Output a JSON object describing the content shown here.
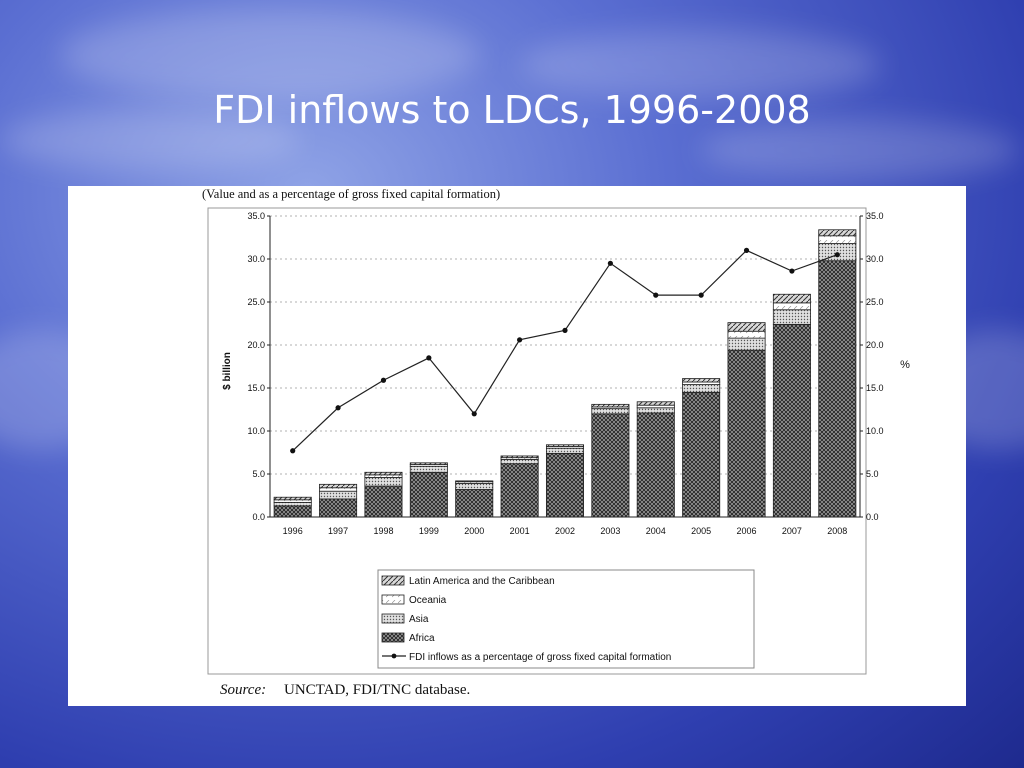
{
  "slide": {
    "title": "FDI inflows to LDCs, 1996-2008"
  },
  "figure": {
    "caption": "(Value and as a percentage of gross fixed capital formation)",
    "source_label": "Source:",
    "source_text": "UNCTAD, FDI/TNC database."
  },
  "chart_data": {
    "type": "bar",
    "stacked": true,
    "categories": [
      "1996",
      "1997",
      "1998",
      "1999",
      "2000",
      "2001",
      "2002",
      "2003",
      "2004",
      "2005",
      "2006",
      "2007",
      "2008"
    ],
    "series": [
      {
        "name": "Africa",
        "values": [
          1.3,
          2.1,
          3.6,
          5.2,
          3.2,
          6.2,
          7.4,
          12.0,
          12.1,
          14.5,
          19.4,
          22.4,
          29.8
        ],
        "color": "#6a6a6a"
      },
      {
        "name": "Asia",
        "values": [
          0.4,
          0.9,
          1.0,
          0.7,
          0.7,
          0.5,
          0.6,
          0.6,
          0.6,
          0.9,
          1.4,
          1.7,
          2.0
        ],
        "color": "#bdbdbd"
      },
      {
        "name": "Oceania",
        "values": [
          0.3,
          0.4,
          0.3,
          0.2,
          0.2,
          0.2,
          0.2,
          0.2,
          0.3,
          0.3,
          0.8,
          0.8,
          0.9
        ],
        "color": "#ffffff"
      },
      {
        "name": "Latin America and the Caribbean",
        "values": [
          0.3,
          0.4,
          0.3,
          0.2,
          0.1,
          0.2,
          0.2,
          0.3,
          0.4,
          0.4,
          1.0,
          1.0,
          0.7
        ],
        "color": "#9a9a9a"
      },
      {
        "name": "FDI inflows as a percentage of gross fixed capital formation",
        "type": "line",
        "axis": "right",
        "values": [
          7.7,
          12.7,
          15.9,
          18.5,
          12.0,
          20.6,
          21.7,
          29.5,
          25.8,
          25.8,
          31.0,
          28.6,
          30.5
        ]
      }
    ],
    "ylabel": "$ billion",
    "ylabel_right": "%",
    "ylim": [
      0,
      35
    ],
    "ylim_right": [
      0,
      35
    ],
    "yticks": [
      "0.0",
      "5.0",
      "10.0",
      "15.0",
      "20.0",
      "25.0",
      "30.0",
      "35.0"
    ],
    "grid": true,
    "legend_position": "bottom"
  }
}
